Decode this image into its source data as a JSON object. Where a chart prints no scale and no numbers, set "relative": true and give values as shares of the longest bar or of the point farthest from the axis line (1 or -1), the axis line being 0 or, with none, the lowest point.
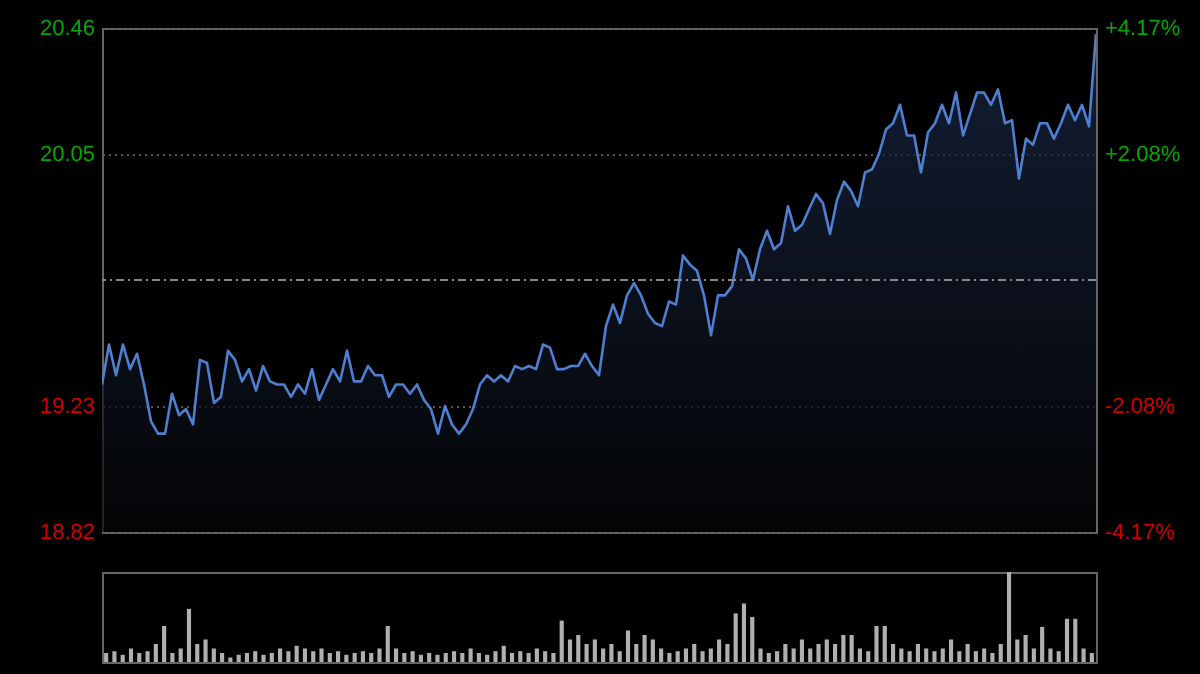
{
  "chart_data": [
    {
      "type": "area",
      "categories": [
        null,
        null,
        null,
        null,
        null,
        null,
        null,
        null,
        null,
        null,
        null,
        null,
        null,
        null,
        null,
        null,
        null,
        null,
        null,
        null,
        null,
        null,
        null,
        null,
        null,
        null,
        null,
        null,
        null,
        null,
        null,
        null,
        null,
        null,
        null,
        null,
        null,
        null,
        null,
        null,
        null,
        null,
        null,
        null,
        null,
        null,
        null,
        null,
        null,
        null,
        null,
        null,
        null,
        null,
        null,
        null,
        null,
        null,
        null,
        null,
        null,
        null,
        null,
        null,
        null,
        null,
        null,
        null,
        null,
        null,
        null,
        null,
        null,
        null,
        null,
        null,
        null,
        null,
        null,
        null,
        null,
        null,
        null,
        null,
        null,
        null,
        null,
        null,
        null,
        null,
        null,
        null,
        null,
        null,
        null,
        null,
        null,
        null,
        null,
        null,
        null,
        null,
        null,
        null,
        null,
        null,
        null,
        null,
        null,
        null,
        null,
        null,
        null,
        null,
        null,
        null,
        null,
        null,
        null,
        null,
        null,
        null,
        null,
        null,
        null,
        null,
        null,
        null,
        null,
        null,
        null,
        null,
        null,
        null,
        null,
        null,
        null,
        null,
        null,
        null,
        null,
        null,
        null
      ],
      "ylim": [
        18.82,
        20.46
      ],
      "yticks": [
        18.82,
        19.23,
        20.05,
        20.46
      ],
      "y2lim": [
        -4.17,
        4.17
      ],
      "y2ticks": [
        {
          "value": -4.17,
          "label": "-4.17%"
        },
        {
          "value": -2.08,
          "label": "-2.08%"
        },
        {
          "value": 2.08,
          "label": "+2.08%"
        },
        {
          "value": 4.17,
          "label": "+4.17%"
        }
      ],
      "grid": "y",
      "ref_lines": [
        {
          "axis": "y",
          "value": 19.64,
          "color": "#888888",
          "line_style": "dashed"
        }
      ],
      "series": [
        {
          "color": "#4f7fd0",
          "values": [
            19.3,
            19.43,
            19.33,
            19.43,
            19.35,
            19.4,
            19.3,
            19.18,
            19.14,
            19.14,
            19.27,
            19.2,
            19.22,
            19.17,
            19.38,
            19.37,
            19.24,
            19.26,
            19.41,
            19.38,
            19.31,
            19.35,
            19.28,
            19.36,
            19.31,
            19.3,
            19.3,
            19.26,
            19.3,
            19.27,
            19.35,
            19.25,
            19.3,
            19.35,
            19.31,
            19.41,
            19.31,
            19.31,
            19.36,
            19.33,
            19.33,
            19.26,
            19.3,
            19.3,
            19.27,
            19.3,
            19.25,
            19.22,
            19.14,
            19.23,
            19.17,
            19.14,
            19.17,
            19.22,
            19.3,
            19.33,
            19.31,
            19.33,
            19.31,
            19.36,
            19.35,
            19.36,
            19.35,
            19.43,
            19.42,
            19.35,
            19.35,
            19.36,
            19.36,
            19.4,
            19.36,
            19.33,
            19.49,
            19.56,
            19.5,
            19.59,
            19.63,
            19.59,
            19.53,
            19.5,
            19.49,
            19.57,
            19.56,
            19.72,
            19.69,
            19.67,
            19.59,
            19.46,
            19.59,
            19.59,
            19.62,
            19.74,
            19.71,
            19.64,
            19.74,
            19.8,
            19.74,
            19.76,
            19.88,
            19.8,
            19.82,
            19.87,
            19.92,
            19.89,
            19.79,
            19.9,
            19.96,
            19.93,
            19.88,
            19.99,
            20.0,
            20.05,
            20.13,
            20.15,
            20.21,
            20.11,
            20.11,
            19.99,
            20.12,
            20.15,
            20.21,
            20.15,
            20.25,
            20.11,
            20.18,
            20.25,
            20.25,
            20.21,
            20.26,
            20.15,
            20.16,
            19.97,
            20.1,
            20.08,
            20.15,
            20.15,
            20.1,
            20.15,
            20.21,
            20.16,
            20.21,
            20.14,
            20.44
          ]
        }
      ]
    },
    {
      "type": "bar",
      "relative": true,
      "tick_labels": false,
      "categories": [
        null,
        null,
        null,
        null,
        null,
        null,
        null,
        null,
        null,
        null,
        null,
        null,
        null,
        null,
        null,
        null,
        null,
        null,
        null,
        null,
        null,
        null,
        null,
        null,
        null,
        null,
        null,
        null,
        null,
        null,
        null,
        null,
        null,
        null,
        null,
        null,
        null,
        null,
        null,
        null,
        null,
        null,
        null,
        null,
        null,
        null,
        null,
        null,
        null,
        null,
        null,
        null,
        null,
        null,
        null,
        null,
        null,
        null,
        null,
        null,
        null,
        null,
        null,
        null,
        null,
        null,
        null,
        null,
        null,
        null,
        null,
        null,
        null,
        null,
        null,
        null,
        null,
        null,
        null,
        null,
        null,
        null,
        null,
        null,
        null,
        null,
        null,
        null,
        null,
        null,
        null,
        null,
        null,
        null,
        null,
        null,
        null,
        null,
        null,
        null,
        null,
        null,
        null,
        null,
        null,
        null,
        null,
        null,
        null,
        null,
        null,
        null,
        null,
        null,
        null,
        null,
        null,
        null,
        null,
        null
      ],
      "series": [
        {
          "color": "#b0b0b0",
          "values": [
            0.1,
            0.12,
            0.08,
            0.15,
            0.1,
            0.12,
            0.2,
            0.4,
            0.1,
            0.15,
            0.59,
            0.2,
            0.25,
            0.15,
            0.1,
            0.05,
            0.08,
            0.1,
            0.12,
            0.08,
            0.1,
            0.15,
            0.12,
            0.18,
            0.15,
            0.12,
            0.15,
            0.1,
            0.12,
            0.08,
            0.1,
            0.12,
            0.1,
            0.15,
            0.4,
            0.15,
            0.1,
            0.12,
            0.08,
            0.1,
            0.08,
            0.1,
            0.12,
            0.1,
            0.15,
            0.1,
            0.08,
            0.12,
            0.18,
            0.1,
            0.12,
            0.1,
            0.15,
            0.12,
            0.1,
            0.46,
            0.25,
            0.3,
            0.2,
            0.25,
            0.15,
            0.2,
            0.12,
            0.35,
            0.2,
            0.3,
            0.25,
            0.15,
            0.1,
            0.12,
            0.15,
            0.2,
            0.12,
            0.15,
            0.25,
            0.2,
            0.54,
            0.65,
            0.5,
            0.15,
            0.1,
            0.12,
            0.2,
            0.15,
            0.25,
            0.15,
            0.2,
            0.25,
            0.2,
            0.3,
            0.3,
            0.15,
            0.12,
            0.4,
            0.4,
            0.2,
            0.15,
            0.12,
            0.2,
            0.15,
            0.12,
            0.15,
            0.25,
            0.12,
            0.2,
            0.12,
            0.15,
            0.1,
            0.2,
            1,
            0.25,
            0.3,
            0.15,
            0.39,
            0.15,
            0.12,
            0.48,
            0.48,
            0.15,
            0.1
          ]
        }
      ]
    }
  ]
}
